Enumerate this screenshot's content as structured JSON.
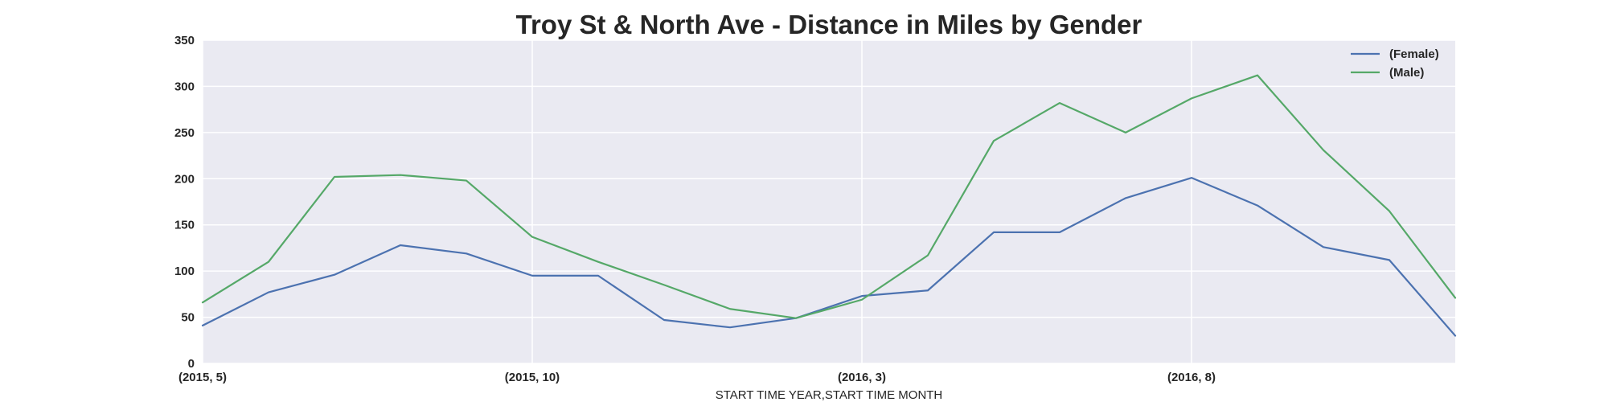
{
  "chart_data": {
    "type": "line",
    "title": "Troy St & North Ave - Distance in Miles by Gender",
    "xlabel": "START TIME YEAR,START TIME MONTH",
    "ylabel": "",
    "ylim": [
      0,
      350
    ],
    "yticks": [
      0,
      50,
      100,
      150,
      200,
      250,
      300,
      350
    ],
    "grid": true,
    "legend_position": "top-right",
    "x": [
      "(2015, 5)",
      "(2015, 6)",
      "(2015, 7)",
      "(2015, 8)",
      "(2015, 9)",
      "(2015, 10)",
      "(2015, 11)",
      "(2015, 12)",
      "(2016, 1)",
      "(2016, 2)",
      "(2016, 3)",
      "(2016, 4)",
      "(2016, 5)",
      "(2016, 6)",
      "(2016, 7)",
      "(2016, 8)",
      "(2016, 9)",
      "(2016, 10)",
      "(2016, 11)",
      "(2016, 12)"
    ],
    "xticks": [
      "(2015, 5)",
      "(2015, 10)",
      "(2016, 3)",
      "(2016, 8)"
    ],
    "series": [
      {
        "name": "(Female)",
        "color": "#4c72b0",
        "values": [
          41,
          77,
          96,
          128,
          119,
          95,
          95,
          47,
          39,
          49,
          73,
          79,
          142,
          142,
          179,
          201,
          171,
          126,
          112,
          30
        ]
      },
      {
        "name": "(Male)",
        "color": "#55a868",
        "values": [
          66,
          110,
          202,
          204,
          198,
          137,
          110,
          85,
          59,
          49,
          69,
          117,
          241,
          282,
          250,
          287,
          312,
          231,
          165,
          71
        ]
      }
    ],
    "colors": {
      "plot_background": "#eaeaf2",
      "grid": "#ffffff"
    }
  }
}
